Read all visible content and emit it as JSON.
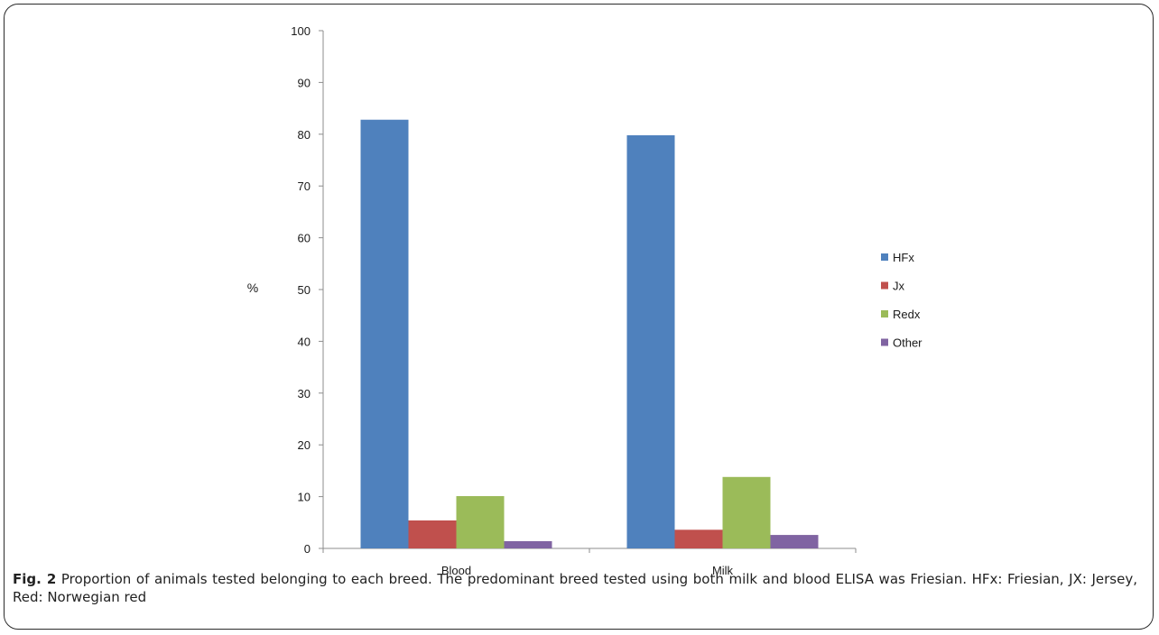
{
  "chart_data": {
    "type": "bar",
    "categories": [
      "Blood",
      "Milk"
    ],
    "series": [
      {
        "name": "HFx",
        "values": [
          82.8,
          79.8
        ],
        "color": "#4F81BD"
      },
      {
        "name": "Jx",
        "values": [
          5.4,
          3.6
        ],
        "color": "#C0504D"
      },
      {
        "name": "Redx",
        "values": [
          10.1,
          13.8
        ],
        "color": "#9BBB59"
      },
      {
        "name": "Other",
        "values": [
          1.4,
          2.6
        ],
        "color": "#8064A2"
      }
    ],
    "ylabel": "%",
    "xlabel": "",
    "ylim": [
      0,
      100
    ],
    "yticks": [
      "0",
      "10",
      "20",
      "30",
      "40",
      "50",
      "60",
      "70",
      "80",
      "90",
      "100"
    ],
    "grid": false,
    "legend": "right"
  },
  "caption": {
    "label": "Fig. 2",
    "text": " Proportion of animals tested belonging to each breed. The predominant breed tested using both milk and blood ELISA was Friesian. HFx: Friesian, JX: Jersey, Red: Norwegian red"
  }
}
